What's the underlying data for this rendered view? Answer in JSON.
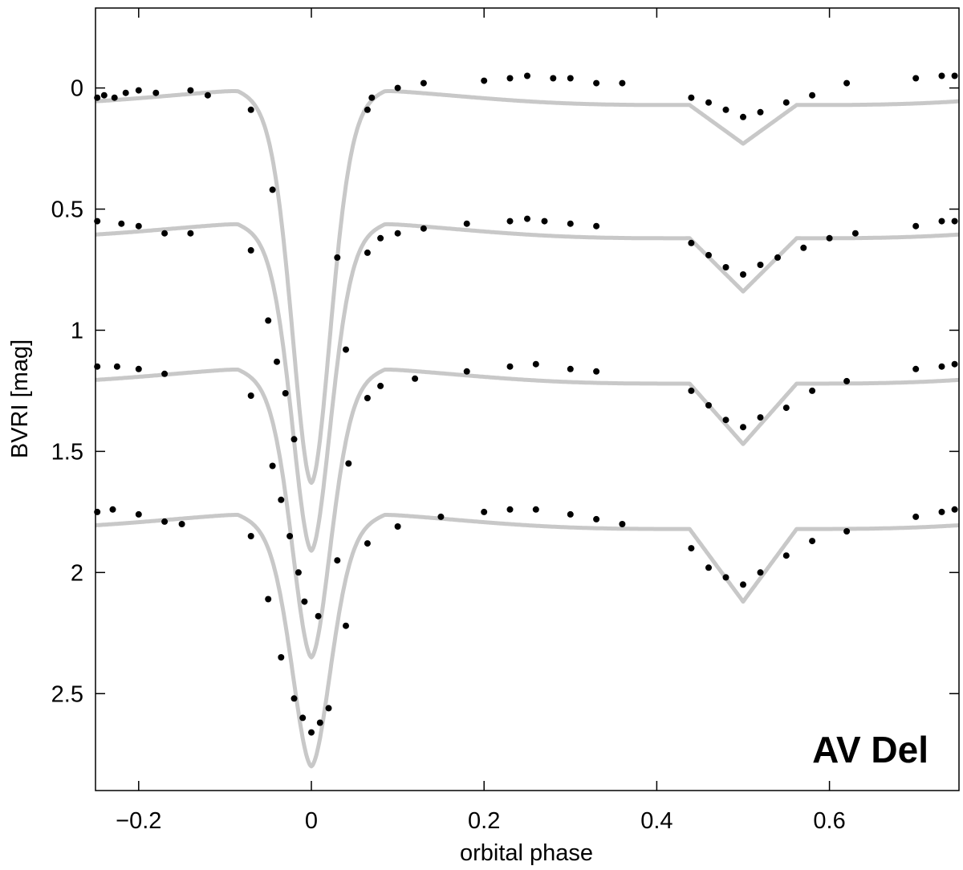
{
  "chart_data": {
    "type": "scatter",
    "title": "",
    "xlabel": "orbital phase",
    "ylabel": "BVRI  [mag]",
    "xlim": [
      -0.25,
      0.75
    ],
    "ylim": [
      2.9,
      -0.33
    ],
    "y_inverted": true,
    "grid": false,
    "xticks": [
      -0.2,
      0,
      0.2,
      0.4,
      0.6
    ],
    "xtick_labels": [
      "−0.2",
      "0",
      "0.2",
      "0.4",
      "0.6"
    ],
    "yticks": [
      0,
      0.5,
      1,
      1.5,
      2,
      2.5
    ],
    "ytick_labels": [
      "0",
      "0.5",
      "1",
      "1.5",
      "2",
      "2.5"
    ],
    "annotation": "AV Del",
    "model_color": "#c8c8c8",
    "point_color": "#000000",
    "series": [
      {
        "offset": 0.0,
        "primary_depth": 1.5,
        "secondary_depth": 0.16,
        "observations": [
          [
            -0.248,
            0.04
          ],
          [
            -0.24,
            0.03
          ],
          [
            -0.228,
            0.04
          ],
          [
            -0.215,
            0.02
          ],
          [
            -0.2,
            0.01
          ],
          [
            -0.18,
            0.02
          ],
          [
            -0.14,
            0.01
          ],
          [
            -0.12,
            0.03
          ],
          [
            -0.07,
            0.09
          ],
          [
            -0.045,
            0.42
          ],
          [
            0.03,
            0.7
          ],
          [
            0.065,
            0.09
          ],
          [
            0.07,
            0.04
          ],
          [
            0.1,
            0.0
          ],
          [
            0.13,
            -0.02
          ],
          [
            0.2,
            -0.03
          ],
          [
            0.23,
            -0.04
          ],
          [
            0.25,
            -0.05
          ],
          [
            0.28,
            -0.04
          ],
          [
            0.3,
            -0.04
          ],
          [
            0.33,
            -0.02
          ],
          [
            0.36,
            -0.02
          ],
          [
            0.44,
            0.04
          ],
          [
            0.46,
            0.06
          ],
          [
            0.48,
            0.09
          ],
          [
            0.5,
            0.12
          ],
          [
            0.52,
            0.1
          ],
          [
            0.55,
            0.06
          ],
          [
            0.58,
            0.03
          ],
          [
            0.62,
            -0.02
          ],
          [
            0.7,
            -0.04
          ],
          [
            0.73,
            -0.05
          ],
          [
            0.745,
            -0.05
          ]
        ]
      },
      {
        "offset": 0.55,
        "primary_depth": 1.23,
        "secondary_depth": 0.22,
        "observations": [
          [
            -0.248,
            0.55
          ],
          [
            -0.22,
            0.56
          ],
          [
            -0.2,
            0.57
          ],
          [
            -0.17,
            0.6
          ],
          [
            -0.14,
            0.6
          ],
          [
            -0.07,
            0.67
          ],
          [
            -0.05,
            0.96
          ],
          [
            -0.04,
            1.13
          ],
          [
            -0.03,
            1.26
          ],
          [
            -0.02,
            1.45
          ],
          [
            0.04,
            1.08
          ],
          [
            0.065,
            0.68
          ],
          [
            0.08,
            0.62
          ],
          [
            0.1,
            0.6
          ],
          [
            0.13,
            0.58
          ],
          [
            0.18,
            0.56
          ],
          [
            0.23,
            0.55
          ],
          [
            0.25,
            0.54
          ],
          [
            0.27,
            0.55
          ],
          [
            0.3,
            0.56
          ],
          [
            0.33,
            0.57
          ],
          [
            0.44,
            0.64
          ],
          [
            0.46,
            0.69
          ],
          [
            0.48,
            0.74
          ],
          [
            0.5,
            0.77
          ],
          [
            0.52,
            0.73
          ],
          [
            0.54,
            0.7
          ],
          [
            0.57,
            0.66
          ],
          [
            0.6,
            0.62
          ],
          [
            0.63,
            0.6
          ],
          [
            0.7,
            0.57
          ],
          [
            0.73,
            0.55
          ],
          [
            0.745,
            0.55
          ]
        ]
      },
      {
        "offset": 1.15,
        "primary_depth": 1.07,
        "secondary_depth": 0.25,
        "observations": [
          [
            -0.248,
            1.15
          ],
          [
            -0.225,
            1.15
          ],
          [
            -0.2,
            1.16
          ],
          [
            -0.17,
            1.18
          ],
          [
            -0.07,
            1.27
          ],
          [
            -0.045,
            1.56
          ],
          [
            -0.035,
            1.7
          ],
          [
            -0.025,
            1.85
          ],
          [
            -0.015,
            2.0
          ],
          [
            -0.008,
            2.12
          ],
          [
            0.008,
            2.18
          ],
          [
            0.03,
            1.95
          ],
          [
            0.043,
            1.55
          ],
          [
            0.065,
            1.28
          ],
          [
            0.08,
            1.23
          ],
          [
            0.12,
            1.2
          ],
          [
            0.18,
            1.17
          ],
          [
            0.23,
            1.15
          ],
          [
            0.26,
            1.14
          ],
          [
            0.3,
            1.16
          ],
          [
            0.33,
            1.17
          ],
          [
            0.44,
            1.25
          ],
          [
            0.46,
            1.31
          ],
          [
            0.48,
            1.37
          ],
          [
            0.5,
            1.4
          ],
          [
            0.52,
            1.36
          ],
          [
            0.55,
            1.32
          ],
          [
            0.58,
            1.25
          ],
          [
            0.62,
            1.21
          ],
          [
            0.7,
            1.16
          ],
          [
            0.73,
            1.15
          ],
          [
            0.745,
            1.14
          ]
        ]
      },
      {
        "offset": 1.75,
        "primary_depth": 0.92,
        "secondary_depth": 0.3,
        "observations": [
          [
            -0.248,
            1.75
          ],
          [
            -0.23,
            1.74
          ],
          [
            -0.2,
            1.76
          ],
          [
            -0.17,
            1.79
          ],
          [
            -0.15,
            1.8
          ],
          [
            -0.07,
            1.85
          ],
          [
            -0.05,
            2.11
          ],
          [
            -0.035,
            2.35
          ],
          [
            -0.02,
            2.52
          ],
          [
            -0.01,
            2.6
          ],
          [
            0.0,
            2.66
          ],
          [
            0.01,
            2.62
          ],
          [
            0.02,
            2.56
          ],
          [
            0.04,
            2.22
          ],
          [
            0.065,
            1.88
          ],
          [
            0.1,
            1.81
          ],
          [
            0.15,
            1.77
          ],
          [
            0.2,
            1.75
          ],
          [
            0.23,
            1.74
          ],
          [
            0.26,
            1.74
          ],
          [
            0.3,
            1.76
          ],
          [
            0.33,
            1.78
          ],
          [
            0.36,
            1.8
          ],
          [
            0.44,
            1.9
          ],
          [
            0.46,
            1.98
          ],
          [
            0.48,
            2.02
          ],
          [
            0.5,
            2.05
          ],
          [
            0.52,
            2.0
          ],
          [
            0.55,
            1.93
          ],
          [
            0.58,
            1.87
          ],
          [
            0.62,
            1.83
          ],
          [
            0.7,
            1.77
          ],
          [
            0.73,
            1.75
          ],
          [
            0.745,
            1.74
          ]
        ]
      }
    ]
  }
}
